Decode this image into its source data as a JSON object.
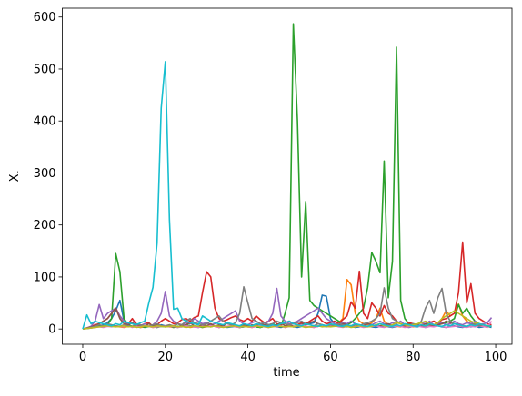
{
  "chart_data": {
    "type": "line",
    "xlabel": "time",
    "ylabel": "Xₜ",
    "x": [
      0,
      1,
      2,
      3,
      4,
      5,
      6,
      7,
      8,
      9,
      10,
      11,
      12,
      13,
      14,
      15,
      16,
      17,
      18,
      19,
      20,
      21,
      22,
      23,
      24,
      25,
      26,
      27,
      28,
      29,
      30,
      31,
      32,
      33,
      34,
      35,
      36,
      37,
      38,
      39,
      40,
      41,
      42,
      43,
      44,
      45,
      46,
      47,
      48,
      49,
      50,
      51,
      52,
      53,
      54,
      55,
      56,
      57,
      58,
      59,
      60,
      61,
      62,
      63,
      64,
      65,
      66,
      67,
      68,
      69,
      70,
      71,
      72,
      73,
      74,
      75,
      76,
      77,
      78,
      79,
      80,
      81,
      82,
      83,
      84,
      85,
      86,
      87,
      88,
      89,
      90,
      91,
      92,
      93,
      94,
      95,
      96,
      97,
      98,
      99
    ],
    "xlim": [
      -4.95,
      103.95
    ],
    "ylim": [
      -29.4,
      617
    ],
    "xticks": [
      0,
      20,
      40,
      60,
      80,
      100
    ],
    "yticks": [
      0,
      100,
      200,
      300,
      400,
      500,
      600
    ],
    "series": [
      {
        "color": "#1f77b4",
        "values": [
          0,
          2,
          3,
          4,
          6,
          8,
          12,
          20,
          35,
          55,
          15,
          8,
          5,
          4,
          3,
          6,
          5,
          4,
          3,
          8,
          6,
          5,
          4,
          3,
          5,
          8,
          6,
          4,
          3,
          5,
          12,
          8,
          5,
          4,
          6,
          3,
          4,
          5,
          3,
          4,
          6,
          5,
          4,
          3,
          5,
          8,
          6,
          4,
          3,
          5,
          6,
          4,
          3,
          5,
          8,
          10,
          12,
          30,
          65,
          63,
          20,
          10,
          8,
          6,
          4,
          5,
          3,
          4,
          6,
          5,
          4,
          3,
          5,
          6,
          4,
          3,
          5,
          6,
          4,
          3,
          5,
          4,
          6,
          3,
          5,
          8,
          6,
          4,
          3,
          5,
          6,
          4,
          3,
          5,
          4,
          6,
          3,
          4,
          5,
          3
        ]
      },
      {
        "color": "#ff7f0e",
        "values": [
          0,
          1,
          2,
          3,
          5,
          4,
          6,
          8,
          5,
          4,
          3,
          5,
          4,
          6,
          3,
          4,
          5,
          3,
          4,
          6,
          5,
          4,
          3,
          5,
          4,
          6,
          3,
          4,
          5,
          3,
          4,
          6,
          5,
          3,
          4,
          5,
          6,
          4,
          3,
          5,
          4,
          3,
          5,
          6,
          4,
          3,
          5,
          4,
          6,
          3,
          5,
          4,
          6,
          8,
          5,
          4,
          3,
          5,
          6,
          4,
          5,
          8,
          12,
          20,
          95,
          85,
          30,
          15,
          10,
          8,
          12,
          20,
          40,
          15,
          8,
          6,
          5,
          4,
          6,
          5,
          4,
          6,
          8,
          10,
          12,
          15,
          10,
          20,
          35,
          25,
          30,
          48,
          25,
          15,
          10,
          8,
          6,
          5,
          4,
          6
        ]
      },
      {
        "color": "#2ca02c",
        "values": [
          0,
          1,
          2,
          4,
          6,
          5,
          8,
          20,
          145,
          110,
          20,
          8,
          5,
          4,
          6,
          3,
          5,
          4,
          3,
          5,
          4,
          6,
          3,
          5,
          4,
          8,
          6,
          5,
          4,
          3,
          5,
          4,
          6,
          3,
          5,
          4,
          6,
          5,
          3,
          4,
          5,
          6,
          4,
          3,
          5,
          8,
          10,
          6,
          4,
          30,
          60,
          587,
          400,
          100,
          245,
          55,
          45,
          40,
          35,
          30,
          25,
          20,
          15,
          10,
          8,
          12,
          20,
          30,
          40,
          80,
          147,
          130,
          108,
          323,
          60,
          130,
          542,
          55,
          20,
          10,
          8,
          6,
          5,
          4,
          6,
          5,
          8,
          10,
          12,
          15,
          20,
          47,
          30,
          40,
          25,
          15,
          10,
          8,
          6,
          5
        ]
      },
      {
        "color": "#d62728",
        "values": [
          0,
          2,
          4,
          8,
          10,
          15,
          20,
          30,
          40,
          25,
          15,
          10,
          20,
          8,
          6,
          10,
          12,
          5,
          8,
          15,
          20,
          15,
          10,
          12,
          18,
          20,
          15,
          22,
          25,
          70,
          110,
          100,
          40,
          20,
          15,
          18,
          22,
          25,
          18,
          15,
          20,
          15,
          25,
          18,
          12,
          15,
          20,
          10,
          8,
          12,
          15,
          10,
          8,
          12,
          10,
          15,
          20,
          25,
          15,
          10,
          12,
          15,
          10,
          18,
          25,
          52,
          40,
          111,
          30,
          20,
          50,
          40,
          25,
          45,
          30,
          25,
          15,
          10,
          8,
          12,
          10,
          8,
          6,
          10,
          12,
          15,
          10,
          18,
          20,
          25,
          30,
          70,
          167,
          50,
          87,
          30,
          20,
          15,
          10,
          8
        ]
      },
      {
        "color": "#9467bd",
        "values": [
          0,
          2,
          5,
          15,
          47,
          20,
          30,
          35,
          40,
          25,
          15,
          10,
          12,
          8,
          6,
          10,
          5,
          8,
          15,
          30,
          72,
          25,
          15,
          10,
          8,
          12,
          10,
          20,
          15,
          10,
          12,
          8,
          10,
          15,
          20,
          25,
          30,
          35,
          15,
          10,
          8,
          12,
          15,
          10,
          8,
          15,
          30,
          78,
          25,
          15,
          10,
          12,
          15,
          20,
          25,
          30,
          35,
          40,
          30,
          20,
          15,
          10,
          8,
          12,
          10,
          15,
          10,
          8,
          6,
          10,
          8,
          12,
          15,
          10,
          8,
          12,
          10,
          15,
          8,
          6,
          10,
          8,
          12,
          10,
          15,
          8,
          10,
          12,
          8,
          10,
          15,
          10,
          8,
          12,
          10,
          15,
          8,
          10,
          12,
          22
        ]
      },
      {
        "color": "#8c564b",
        "values": [
          0,
          2,
          4,
          6,
          10,
          15,
          20,
          30,
          40,
          20,
          10,
          8,
          12,
          6,
          8,
          5,
          10,
          6,
          8,
          5,
          6,
          8,
          5,
          10,
          6,
          8,
          12,
          6,
          5,
          8,
          6,
          10,
          5,
          8,
          6,
          12,
          8,
          5,
          6,
          8,
          5,
          8,
          6,
          10,
          8,
          5,
          6,
          8,
          12,
          6,
          8,
          5,
          6,
          10,
          8,
          12,
          15,
          10,
          8,
          6,
          5,
          8,
          6,
          10,
          8,
          6,
          5,
          8,
          6,
          10,
          8,
          5,
          6,
          8,
          10,
          6,
          8,
          5,
          6,
          8,
          6,
          8,
          5,
          10,
          8,
          6,
          8,
          10,
          15,
          12,
          10,
          8,
          6,
          5,
          8,
          10,
          6,
          8,
          5,
          6
        ]
      },
      {
        "color": "#e377c2",
        "values": [
          0,
          1,
          2,
          3,
          4,
          3,
          5,
          4,
          6,
          5,
          4,
          6,
          3,
          5,
          4,
          6,
          5,
          3,
          4,
          5,
          6,
          4,
          5,
          3,
          4,
          6,
          5,
          4,
          3,
          5,
          4,
          6,
          5,
          3,
          4,
          5,
          6,
          4,
          3,
          5,
          4,
          3,
          5,
          6,
          4,
          3,
          5,
          4,
          6,
          3,
          5,
          4,
          6,
          8,
          5,
          4,
          3,
          5,
          6,
          4,
          5,
          6,
          4,
          3,
          5,
          4,
          6,
          5,
          3,
          4,
          5,
          6,
          4,
          3,
          5,
          4,
          6,
          5,
          3,
          4,
          5,
          6,
          4,
          3,
          5,
          4,
          6,
          5,
          3,
          4,
          5,
          6,
          4,
          3,
          5,
          4,
          6,
          5,
          3,
          15
        ]
      },
      {
        "color": "#7f7f7f",
        "values": [
          0,
          1,
          3,
          5,
          8,
          6,
          10,
          8,
          6,
          5,
          8,
          6,
          5,
          10,
          8,
          6,
          5,
          8,
          10,
          6,
          5,
          8,
          6,
          10,
          8,
          15,
          20,
          12,
          10,
          8,
          10,
          15,
          20,
          25,
          15,
          10,
          8,
          12,
          30,
          81,
          50,
          20,
          15,
          10,
          12,
          8,
          10,
          15,
          12,
          10,
          8,
          10,
          12,
          15,
          10,
          8,
          6,
          10,
          8,
          6,
          8,
          6,
          10,
          8,
          6,
          5,
          8,
          6,
          10,
          12,
          15,
          20,
          30,
          79,
          40,
          20,
          15,
          10,
          8,
          6,
          10,
          8,
          15,
          40,
          55,
          30,
          60,
          78,
          30,
          15,
          10,
          8,
          6,
          5,
          8,
          10,
          6,
          8,
          5,
          6
        ]
      },
      {
        "color": "#bcbd22",
        "values": [
          0,
          1,
          2,
          3,
          4,
          5,
          6,
          5,
          4,
          5,
          6,
          4,
          5,
          3,
          4,
          6,
          5,
          4,
          6,
          5,
          4,
          5,
          6,
          4,
          5,
          3,
          4,
          6,
          5,
          4,
          5,
          4,
          6,
          5,
          3,
          4,
          5,
          6,
          4,
          5,
          4,
          5,
          6,
          4,
          5,
          3,
          4,
          6,
          5,
          4,
          5,
          4,
          6,
          5,
          3,
          4,
          5,
          6,
          4,
          5,
          4,
          5,
          6,
          4,
          5,
          3,
          4,
          6,
          5,
          4,
          5,
          8,
          10,
          6,
          5,
          8,
          12,
          10,
          8,
          6,
          8,
          10,
          12,
          15,
          10,
          8,
          12,
          20,
          25,
          30,
          35,
          30,
          25,
          20,
          15,
          12,
          10,
          8,
          6,
          5
        ]
      },
      {
        "color": "#17becf",
        "values": [
          0,
          27,
          10,
          15,
          12,
          10,
          8,
          6,
          10,
          8,
          15,
          12,
          10,
          8,
          12,
          15,
          50,
          80,
          165,
          425,
          514,
          210,
          38,
          40,
          20,
          15,
          12,
          10,
          8,
          25,
          20,
          15,
          12,
          10,
          8,
          12,
          10,
          8,
          6,
          10,
          8,
          6,
          10,
          8,
          6,
          5,
          8,
          6,
          10,
          12,
          15,
          10,
          8,
          6,
          10,
          8,
          6,
          5,
          8,
          6,
          10,
          8,
          6,
          5,
          8,
          6,
          10,
          8,
          6,
          5,
          8,
          6,
          10,
          8,
          6,
          5,
          8,
          6,
          10,
          8,
          6,
          5,
          8,
          6,
          10,
          8,
          6,
          5,
          8,
          6,
          10,
          8,
          6,
          5,
          8,
          6,
          10,
          8,
          6,
          5
        ]
      }
    ]
  }
}
